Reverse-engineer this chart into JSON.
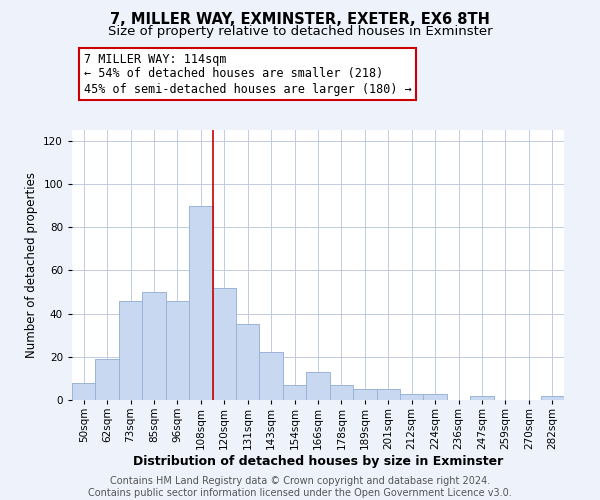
{
  "title": "7, MILLER WAY, EXMINSTER, EXETER, EX6 8TH",
  "subtitle": "Size of property relative to detached houses in Exminster",
  "xlabel": "Distribution of detached houses by size in Exminster",
  "ylabel": "Number of detached properties",
  "bar_color": "#c8d8f0",
  "bar_edge_color": "#9ab4d8",
  "marker_line_color": "#cc0000",
  "categories": [
    "50sqm",
    "62sqm",
    "73sqm",
    "85sqm",
    "96sqm",
    "108sqm",
    "120sqm",
    "131sqm",
    "143sqm",
    "154sqm",
    "166sqm",
    "178sqm",
    "189sqm",
    "201sqm",
    "212sqm",
    "224sqm",
    "236sqm",
    "247sqm",
    "259sqm",
    "270sqm",
    "282sqm"
  ],
  "values": [
    8,
    19,
    46,
    50,
    46,
    90,
    52,
    35,
    22,
    7,
    13,
    7,
    5,
    5,
    3,
    3,
    0,
    2,
    0,
    0,
    2
  ],
  "ylim": [
    0,
    125
  ],
  "yticks": [
    0,
    20,
    40,
    60,
    80,
    100,
    120
  ],
  "marker_bin_index": 5,
  "annotation_line1": "7 MILLER WAY: 114sqm",
  "annotation_line2": "← 54% of detached houses are smaller (218)",
  "annotation_line3": "45% of semi-detached houses are larger (180) →",
  "annotation_box_color": "#ffffff",
  "annotation_box_edge_color": "#cc0000",
  "footer_line1": "Contains HM Land Registry data © Crown copyright and database right 2024.",
  "footer_line2": "Contains public sector information licensed under the Open Government Licence v3.0.",
  "background_color": "#eef2fb",
  "plot_background_color": "#ffffff",
  "grid_color": "#c0cce0",
  "title_fontsize": 10.5,
  "subtitle_fontsize": 9.5,
  "xlabel_fontsize": 9,
  "ylabel_fontsize": 8.5,
  "tick_fontsize": 7.5,
  "footer_fontsize": 7,
  "annotation_fontsize": 8.5
}
